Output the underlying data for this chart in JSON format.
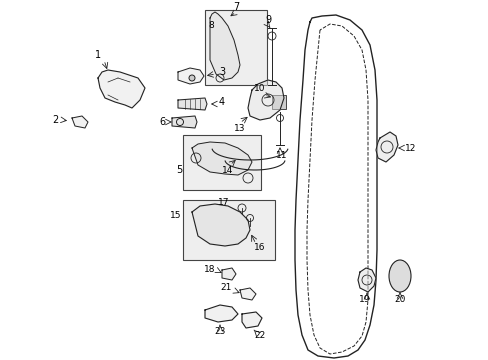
{
  "background_color": "#ffffff",
  "line_color": "#222222",
  "fig_width": 4.89,
  "fig_height": 3.6,
  "dpi": 100
}
